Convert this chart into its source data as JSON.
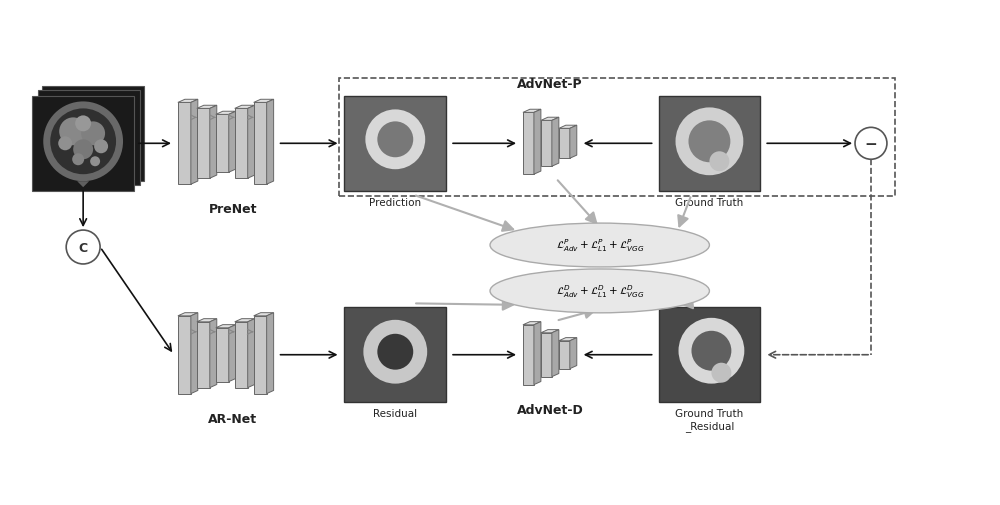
{
  "bg_color": "#ffffff",
  "fig_width": 10.0,
  "fig_height": 5.06,
  "labels": {
    "prenet": "PreNet",
    "arnet": "AR-Net",
    "advnet_p": "AdvNet-P",
    "advnet_d": "AdvNet-D",
    "prediction": "Prediction",
    "residual": "Residual",
    "ground_truth": "Ground Truth",
    "ground_truth_residual": "Ground Truth\n_Residual",
    "loss_p": "$\\mathcal{L}^P_{Adv} + \\mathcal{L}^P_{L1} + \\mathcal{L}^P_{VGG}$",
    "loss_d": "$\\mathcal{L}^D_{Adv} + \\mathcal{L}^D_{L1} + \\mathcal{L}^D_{VGG}$"
  }
}
